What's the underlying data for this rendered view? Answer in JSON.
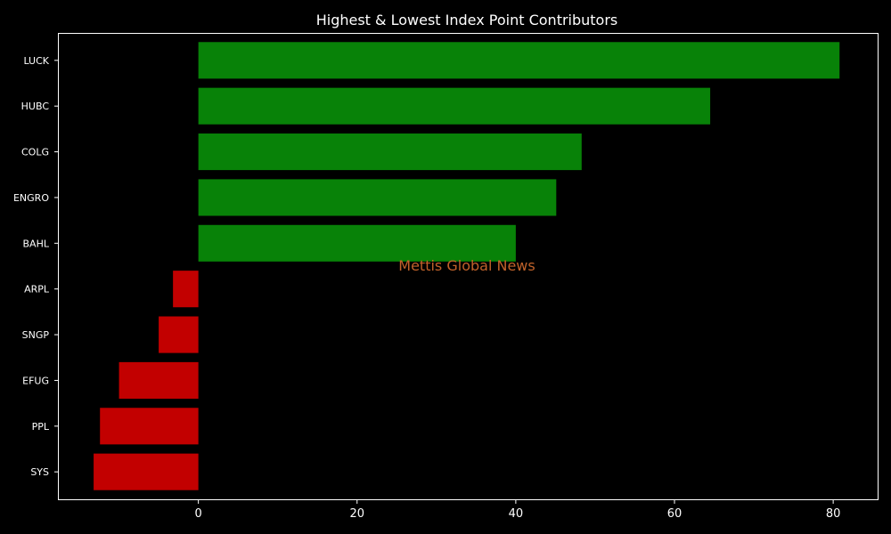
{
  "chart_data": {
    "type": "bar",
    "orientation": "horizontal",
    "title": "Highest & Lowest Index Point Contributors",
    "xlabel": "",
    "ylabel": "",
    "categories": [
      "LUCK",
      "HUBC",
      "COLG",
      "ENGRO",
      "BAHL",
      "ARPL",
      "SNGP",
      "EFUG",
      "PPL",
      "SYS"
    ],
    "values": [
      80.8,
      64.5,
      48.3,
      45.1,
      40.0,
      -3.2,
      -5.0,
      -10.0,
      -12.4,
      -13.2
    ],
    "xlim": [
      -17.7,
      85.6
    ],
    "xticks": [
      "0",
      "20",
      "40",
      "60",
      "80"
    ],
    "grid": false,
    "watermark": "Mettis Global News",
    "colors": {
      "positive": "#088208",
      "negative": "#c20000",
      "background": "#000000",
      "axes": "#ffffff",
      "watermark": "#c0622a"
    }
  }
}
